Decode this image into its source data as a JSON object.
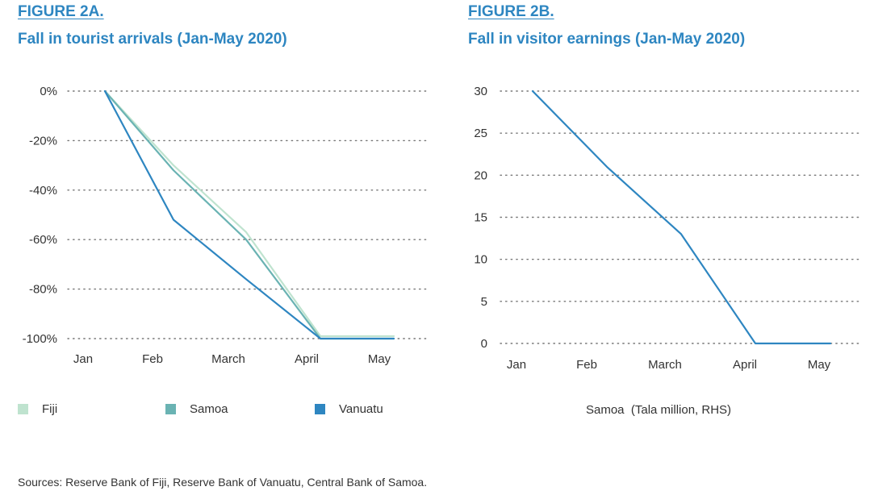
{
  "chart_data": [
    {
      "type": "line",
      "figure_label": "FIGURE 2A.",
      "title": "Fall in tourist arrivals (Jan-May 2020)",
      "categories": [
        "Jan",
        "Feb",
        "March",
        "April",
        "May"
      ],
      "ylim": [
        -100,
        0
      ],
      "yticks": [
        0,
        -20,
        -40,
        -60,
        -80,
        -100
      ],
      "ytick_labels": [
        "0%",
        "-20%",
        "-40%",
        "-60%",
        "-80%",
        "-100%"
      ],
      "grid": true,
      "series": [
        {
          "name": "Fiji",
          "color": "#bfe3cf",
          "values": [
            0,
            -30,
            -57,
            -99,
            -99
          ]
        },
        {
          "name": "Samoa",
          "color": "#6ab3b3",
          "values": [
            0,
            -32,
            -60,
            -100,
            -100
          ]
        },
        {
          "name": "Vanuatu",
          "color": "#2e86c1",
          "values": [
            0,
            -52,
            -76,
            -100,
            -100
          ]
        }
      ],
      "legend_position": "bottom"
    },
    {
      "type": "line",
      "figure_label": "FIGURE 2B.",
      "title": "Fall in visitor earnings (Jan-May 2020)",
      "categories": [
        "Jan",
        "Feb",
        "March",
        "April",
        "May"
      ],
      "ylim": [
        0,
        30
      ],
      "yticks": [
        30,
        25,
        20,
        15,
        10,
        5,
        0
      ],
      "ytick_labels": [
        "30",
        "25",
        "20",
        "15",
        "10",
        "5",
        "0"
      ],
      "grid": true,
      "series": [
        {
          "name": "Samoa",
          "color": "#2e86c1",
          "values": [
            30,
            21,
            13,
            0,
            0
          ]
        }
      ],
      "caption": "Samoa  (Tala million, RHS)"
    }
  ],
  "source": "Sources: Reserve Bank of Fiji, Reserve Bank of Vanuatu, Central Bank of Samoa."
}
